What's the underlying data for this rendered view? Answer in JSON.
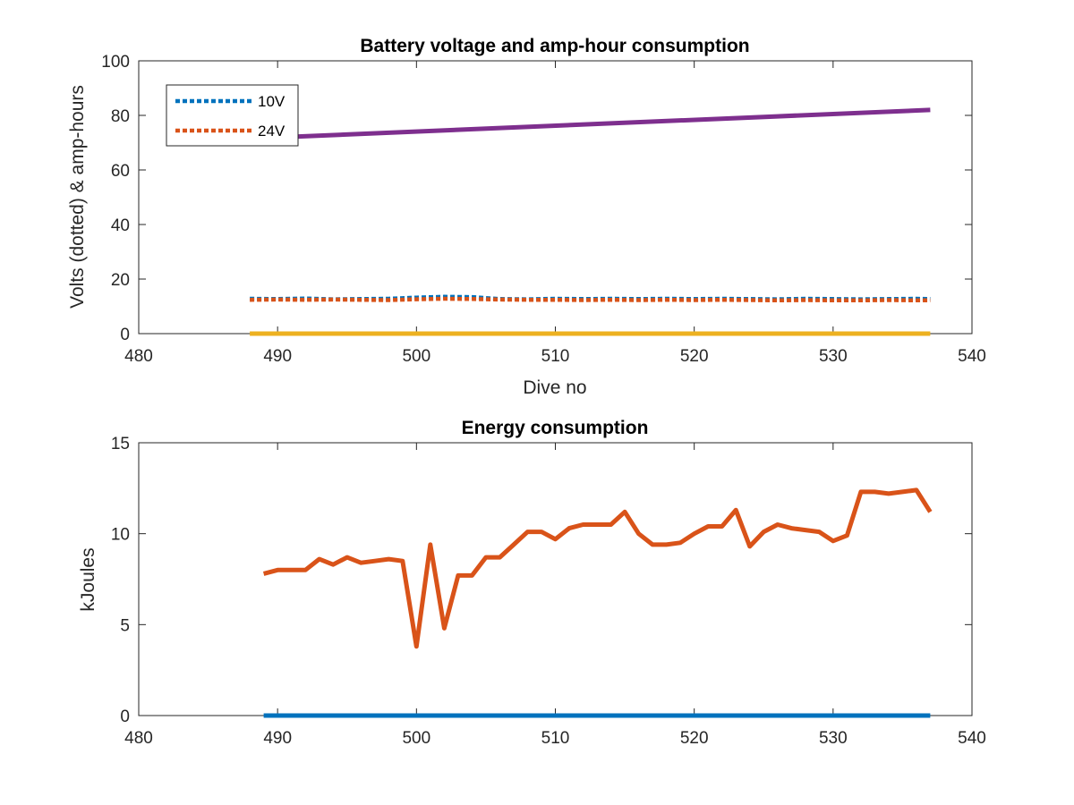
{
  "chart_data": [
    {
      "type": "line",
      "title": "Battery voltage and amp-hour consumption",
      "xlabel": "Dive no",
      "ylabel": "Volts (dotted) & amp-hours",
      "xlim": [
        480,
        540
      ],
      "ylim": [
        0,
        100
      ],
      "xticks": [
        "480",
        "490",
        "500",
        "510",
        "520",
        "530",
        "540"
      ],
      "yticks": [
        "0",
        "20",
        "40",
        "60",
        "80",
        "100"
      ],
      "grid": false,
      "legend_position": "top-left",
      "series": [
        {
          "name": "10V",
          "style": "dotted",
          "color": "#0072BD",
          "x": [
            488,
            490,
            492,
            494,
            496,
            498,
            500,
            502,
            504,
            506,
            508,
            510,
            512,
            514,
            516,
            518,
            520,
            522,
            524,
            526,
            528,
            530,
            532,
            534,
            536,
            537
          ],
          "y": [
            12.8,
            12.7,
            12.9,
            12.6,
            12.7,
            12.8,
            13.2,
            13.5,
            13.4,
            12.7,
            12.6,
            12.8,
            12.7,
            12.8,
            12.7,
            12.8,
            12.7,
            12.8,
            12.7,
            12.6,
            12.8,
            12.7,
            12.6,
            12.7,
            12.8,
            12.7
          ]
        },
        {
          "name": "24V",
          "style": "dotted",
          "color": "#D95319",
          "x": [
            488,
            490,
            492,
            494,
            496,
            498,
            500,
            502,
            504,
            506,
            508,
            510,
            512,
            514,
            516,
            518,
            520,
            522,
            524,
            526,
            528,
            530,
            532,
            534,
            536,
            537
          ],
          "y": [
            12.4,
            12.5,
            12.4,
            12.5,
            12.4,
            12.3,
            12.6,
            12.8,
            12.7,
            12.5,
            12.4,
            12.4,
            12.3,
            12.4,
            12.3,
            12.4,
            12.3,
            12.4,
            12.3,
            12.2,
            12.3,
            12.2,
            12.2,
            12.3,
            12.2,
            12.2
          ]
        },
        {
          "style": "solid",
          "color": "#7E2F8E",
          "x": [
            488,
            537
          ],
          "y": [
            71.5,
            82
          ]
        },
        {
          "style": "solid",
          "color": "#EDB120",
          "x": [
            488,
            537
          ],
          "y": [
            0,
            0
          ]
        }
      ]
    },
    {
      "type": "line",
      "title": "Energy consumption",
      "xlabel": "",
      "ylabel": "kJoules",
      "xlim": [
        480,
        540
      ],
      "ylim": [
        0,
        15
      ],
      "xticks": [
        "480",
        "490",
        "500",
        "510",
        "520",
        "530",
        "540"
      ],
      "yticks": [
        "0",
        "5",
        "10",
        "15"
      ],
      "grid": false,
      "series": [
        {
          "style": "solid",
          "color": "#0072BD",
          "x": [
            489,
            537
          ],
          "y": [
            0,
            0
          ]
        },
        {
          "style": "solid",
          "color": "#D95319",
          "x": [
            489,
            490,
            491,
            492,
            493,
            494,
            495,
            496,
            497,
            498,
            499,
            500,
            501,
            502,
            503,
            504,
            505,
            506,
            507,
            508,
            509,
            510,
            511,
            512,
            513,
            514,
            515,
            516,
            517,
            518,
            519,
            520,
            521,
            522,
            523,
            524,
            525,
            526,
            527,
            528,
            529,
            530,
            531,
            532,
            533,
            534,
            535,
            536,
            537
          ],
          "y": [
            7.8,
            8.0,
            8.0,
            8.0,
            8.6,
            8.3,
            8.7,
            8.4,
            8.5,
            8.6,
            8.5,
            3.8,
            9.4,
            4.8,
            7.7,
            7.7,
            8.7,
            8.7,
            9.4,
            10.1,
            10.1,
            9.7,
            10.3,
            10.5,
            10.5,
            10.5,
            11.2,
            10.0,
            9.4,
            9.4,
            9.5,
            10.0,
            10.4,
            10.4,
            11.3,
            9.3,
            10.1,
            10.5,
            10.3,
            10.2,
            10.1,
            9.6,
            9.9,
            12.3,
            12.3,
            12.2,
            12.3,
            12.4,
            11.2
          ]
        }
      ]
    }
  ]
}
